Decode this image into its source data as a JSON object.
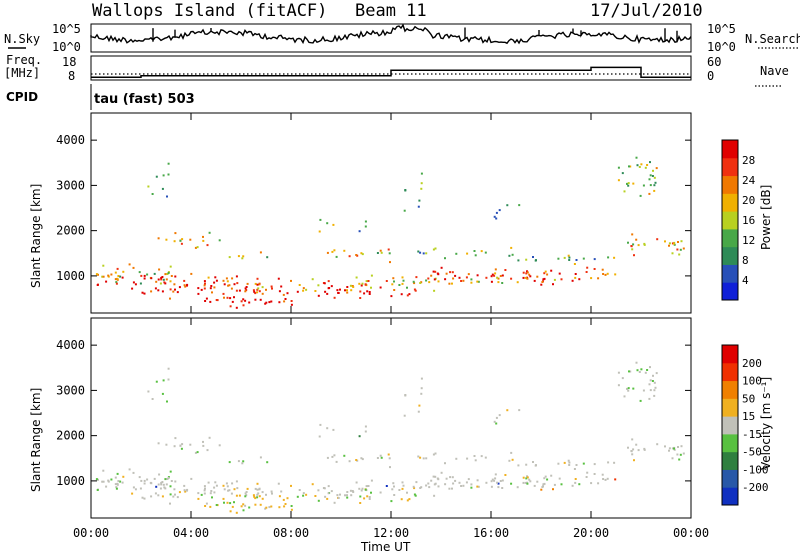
{
  "header": {
    "station": "Wallops Island (fitACF)",
    "beam": "Beam 11",
    "date": "17/Jul/2010"
  },
  "status_panels": {
    "nsky_label": "N.Sky",
    "nsearch_label": "N.Search",
    "freq_label_line1": "Freq.",
    "freq_label_line2": "[MHz]",
    "nave_label": "Nave",
    "cpid_label": "CPID",
    "cpid_value": "tau (fast) 503",
    "left_ticks_noise": [
      "10^5",
      "10^0"
    ],
    "right_ticks_noise": [
      "10^5",
      "10^0"
    ],
    "left_ticks_freq": [
      "18",
      "8"
    ],
    "right_ticks_freq": [
      "60",
      "0"
    ]
  },
  "chart_data": [
    {
      "type": "heatmap",
      "name": "power",
      "ylabel": "Slant Range [km]",
      "ylim": [
        180,
        4600
      ],
      "yticks": [
        1000,
        2000,
        3000,
        4000
      ],
      "xlim": [
        0,
        24
      ],
      "colorbar_label": "Power [dB]",
      "colorbar_ticks": [
        "28",
        "24",
        "20",
        "16",
        "12",
        "8",
        "4"
      ],
      "colors": [
        "#1020d8",
        "#2850b8",
        "#2e8b57",
        "#48a848",
        "#b8d020",
        "#f0b000",
        "#f07800",
        "#f03010",
        "#e00000"
      ]
    },
    {
      "type": "heatmap",
      "name": "velocity",
      "ylabel": "Slant Range [km]",
      "ylim": [
        180,
        4600
      ],
      "yticks": [
        1000,
        2000,
        3000,
        4000
      ],
      "xlim": [
        0,
        24
      ],
      "colorbar_label": "Velocity [m s⁻¹]",
      "colorbar_ticks": [
        "200",
        "100",
        "50",
        "15",
        "-15",
        "-50",
        "-100",
        "-200"
      ],
      "colors": [
        "#1030c0",
        "#2858a8",
        "#2f7f3f",
        "#58c040",
        "#c0c0b8",
        "#f0b020",
        "#f08000",
        "#f03000",
        "#e00000"
      ]
    }
  ],
  "time_axis": {
    "label": "Time UT",
    "ticks": [
      "00:00",
      "04:00",
      "08:00",
      "12:00",
      "16:00",
      "20:00",
      "00:00"
    ]
  },
  "frequency_trace": {
    "segments_hours_mhz": [
      [
        0,
        2,
        10
      ],
      [
        2,
        12,
        11
      ],
      [
        12,
        20,
        15
      ],
      [
        20,
        22,
        17
      ],
      [
        22,
        24,
        10
      ]
    ]
  }
}
